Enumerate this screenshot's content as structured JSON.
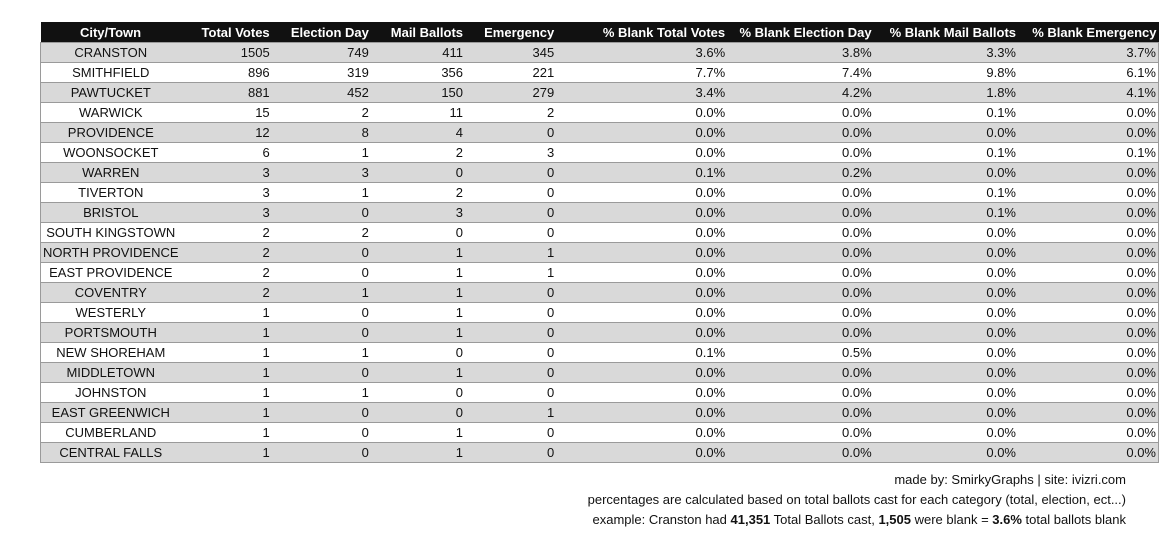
{
  "chart_data": {
    "type": "table",
    "columns": [
      "City/Town",
      "Total Votes",
      "Election Day",
      "Mail Ballots",
      "Emergency",
      "% Blank Total Votes",
      "% Blank Election Day",
      "% Blank Mail Ballots",
      "% Blank Emergency"
    ],
    "rows": [
      [
        "CRANSTON",
        "1505",
        "749",
        "411",
        "345",
        "3.6%",
        "3.8%",
        "3.3%",
        "3.7%"
      ],
      [
        "SMITHFIELD",
        "896",
        "319",
        "356",
        "221",
        "7.7%",
        "7.4%",
        "9.8%",
        "6.1%"
      ],
      [
        "PAWTUCKET",
        "881",
        "452",
        "150",
        "279",
        "3.4%",
        "4.2%",
        "1.8%",
        "4.1%"
      ],
      [
        "WARWICK",
        "15",
        "2",
        "11",
        "2",
        "0.0%",
        "0.0%",
        "0.1%",
        "0.0%"
      ],
      [
        "PROVIDENCE",
        "12",
        "8",
        "4",
        "0",
        "0.0%",
        "0.0%",
        "0.0%",
        "0.0%"
      ],
      [
        "WOONSOCKET",
        "6",
        "1",
        "2",
        "3",
        "0.0%",
        "0.0%",
        "0.1%",
        "0.1%"
      ],
      [
        "WARREN",
        "3",
        "3",
        "0",
        "0",
        "0.1%",
        "0.2%",
        "0.0%",
        "0.0%"
      ],
      [
        "TIVERTON",
        "3",
        "1",
        "2",
        "0",
        "0.0%",
        "0.0%",
        "0.1%",
        "0.0%"
      ],
      [
        "BRISTOL",
        "3",
        "0",
        "3",
        "0",
        "0.0%",
        "0.0%",
        "0.1%",
        "0.0%"
      ],
      [
        "SOUTH KINGSTOWN",
        "2",
        "2",
        "0",
        "0",
        "0.0%",
        "0.0%",
        "0.0%",
        "0.0%"
      ],
      [
        "NORTH PROVIDENCE",
        "2",
        "0",
        "1",
        "1",
        "0.0%",
        "0.0%",
        "0.0%",
        "0.0%"
      ],
      [
        "EAST PROVIDENCE",
        "2",
        "0",
        "1",
        "1",
        "0.0%",
        "0.0%",
        "0.0%",
        "0.0%"
      ],
      [
        "COVENTRY",
        "2",
        "1",
        "1",
        "0",
        "0.0%",
        "0.0%",
        "0.0%",
        "0.0%"
      ],
      [
        "WESTERLY",
        "1",
        "0",
        "1",
        "0",
        "0.0%",
        "0.0%",
        "0.0%",
        "0.0%"
      ],
      [
        "PORTSMOUTH",
        "1",
        "0",
        "1",
        "0",
        "0.0%",
        "0.0%",
        "0.0%",
        "0.0%"
      ],
      [
        "NEW SHOREHAM",
        "1",
        "1",
        "0",
        "0",
        "0.1%",
        "0.5%",
        "0.0%",
        "0.0%"
      ],
      [
        "MIDDLETOWN",
        "1",
        "0",
        "1",
        "0",
        "0.0%",
        "0.0%",
        "0.0%",
        "0.0%"
      ],
      [
        "JOHNSTON",
        "1",
        "1",
        "0",
        "0",
        "0.0%",
        "0.0%",
        "0.0%",
        "0.0%"
      ],
      [
        "EAST GREENWICH",
        "1",
        "0",
        "0",
        "1",
        "0.0%",
        "0.0%",
        "0.0%",
        "0.0%"
      ],
      [
        "CUMBERLAND",
        "1",
        "0",
        "1",
        "0",
        "0.0%",
        "0.0%",
        "0.0%",
        "0.0%"
      ],
      [
        "CENTRAL FALLS",
        "1",
        "0",
        "1",
        "0",
        "0.0%",
        "0.0%",
        "0.0%",
        "0.0%"
      ]
    ],
    "row_shading": "alternating",
    "colors": {
      "header_background": "#111111",
      "header_text": "#ffffff",
      "shaded_row": "#d9d9d9",
      "plain_row": "#ffffff",
      "grid_line": "#9a9a9a"
    }
  },
  "notes": {
    "credit": "made by: SmirkyGraphs  |  site: ivizri.com",
    "method": "percentages are calculated based on total ballots cast for each category (total, election, ect...)",
    "example_parts": [
      {
        "text": "example: Cranston had ",
        "bold": false
      },
      {
        "text": "41,351",
        "bold": true
      },
      {
        "text": " Total Ballots cast, ",
        "bold": false
      },
      {
        "text": "1,505",
        "bold": true
      },
      {
        "text": " were blank = ",
        "bold": false
      },
      {
        "text": "3.6%",
        "bold": true
      },
      {
        "text": " total ballots blank",
        "bold": false
      }
    ]
  }
}
